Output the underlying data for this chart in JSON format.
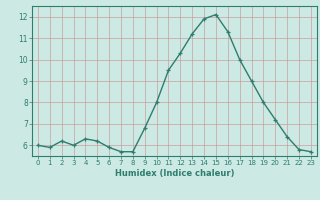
{
  "x": [
    0,
    1,
    2,
    3,
    4,
    5,
    6,
    7,
    8,
    9,
    10,
    11,
    12,
    13,
    14,
    15,
    16,
    17,
    18,
    19,
    20,
    21,
    22,
    23
  ],
  "y": [
    6.0,
    5.9,
    6.2,
    6.0,
    6.3,
    6.2,
    5.9,
    5.7,
    5.7,
    6.8,
    8.0,
    9.5,
    10.3,
    11.2,
    11.9,
    12.1,
    11.3,
    10.0,
    9.0,
    8.0,
    7.2,
    6.4,
    5.8,
    5.7
  ],
  "bg_color": "#cce9e4",
  "grid_color": "#b8d4cf",
  "line_color": "#2e7d6e",
  "xlabel": "Humidex (Indice chaleur)",
  "ylim": [
    5.5,
    12.5
  ],
  "yticks": [
    6,
    7,
    8,
    9,
    10,
    11,
    12
  ],
  "xticks": [
    0,
    1,
    2,
    3,
    4,
    5,
    6,
    7,
    8,
    9,
    10,
    11,
    12,
    13,
    14,
    15,
    16,
    17,
    18,
    19,
    20,
    21,
    22,
    23
  ]
}
